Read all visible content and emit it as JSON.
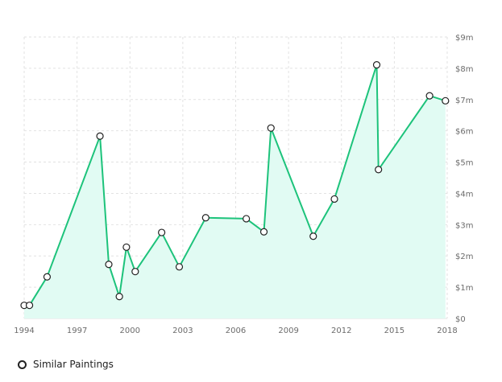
{
  "colors": {
    "line": "#1dc37b",
    "fill": "#e1fbf3",
    "grid": "#e2e2e2",
    "point_fill": "#ffffff",
    "point_stroke": "#222222"
  },
  "chart_data": {
    "type": "line",
    "x_ticks": [
      "1994",
      "1997",
      "2000",
      "2003",
      "2006",
      "2009",
      "2012",
      "2015",
      "2018"
    ],
    "x_tick_values": [
      1994,
      1997,
      2000,
      2003,
      2006,
      2009,
      2012,
      2015,
      2018
    ],
    "y_ticks": [
      "$0",
      "$1m",
      "$2m",
      "$3m",
      "$4m",
      "$5m",
      "$6m",
      "$7m",
      "$8m",
      "$9m"
    ],
    "y_tick_values": [
      0,
      1,
      2,
      3,
      4,
      5,
      6,
      7,
      8,
      9
    ],
    "xlim": [
      1994,
      2018
    ],
    "ylim": [
      0,
      9
    ],
    "y_unit": "million USD",
    "grid": true,
    "area_fill": true,
    "legend_position": "bottom-left",
    "series": [
      {
        "name": "Similar Paintings",
        "points": [
          {
            "x": 1994.0,
            "y": 0.42
          },
          {
            "x": 1994.3,
            "y": 0.42
          },
          {
            "x": 1995.3,
            "y": 1.33
          },
          {
            "x": 1998.3,
            "y": 5.83
          },
          {
            "x": 1998.8,
            "y": 1.73
          },
          {
            "x": 1999.4,
            "y": 0.7
          },
          {
            "x": 1999.8,
            "y": 2.28
          },
          {
            "x": 2000.3,
            "y": 1.5
          },
          {
            "x": 2001.8,
            "y": 2.75
          },
          {
            "x": 2002.8,
            "y": 1.65
          },
          {
            "x": 2004.3,
            "y": 3.22
          },
          {
            "x": 2006.6,
            "y": 3.19
          },
          {
            "x": 2007.6,
            "y": 2.77
          },
          {
            "x": 2008.0,
            "y": 6.09
          },
          {
            "x": 2010.4,
            "y": 2.63
          },
          {
            "x": 2011.6,
            "y": 3.82
          },
          {
            "x": 2014.0,
            "y": 8.11
          },
          {
            "x": 2014.1,
            "y": 4.76
          },
          {
            "x": 2017.0,
            "y": 7.12
          },
          {
            "x": 2017.9,
            "y": 6.96
          }
        ]
      }
    ]
  },
  "legend": {
    "label": "Similar Paintings"
  }
}
